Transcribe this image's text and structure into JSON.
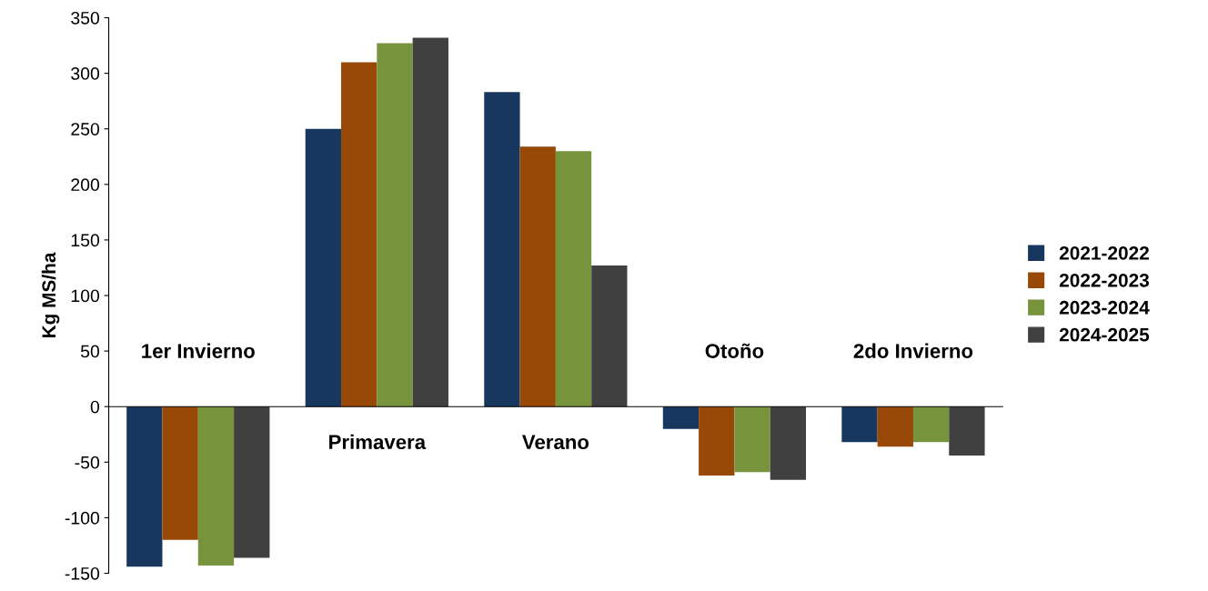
{
  "chart_data": {
    "type": "bar",
    "ylabel": "Kg MS/ha",
    "categories": [
      "1er Invierno",
      "Primavera",
      "Verano",
      "Otoño",
      "2do Invierno"
    ],
    "series": [
      {
        "name": "2021-2022",
        "color": "#17375e",
        "values": [
          -144,
          250,
          283,
          -20,
          -32
        ]
      },
      {
        "name": "2022-2023",
        "color": "#984807",
        "values": [
          -120,
          310,
          234,
          -62,
          -36
        ]
      },
      {
        "name": "2023-2024",
        "color": "#77933c",
        "values": [
          -143,
          327,
          230,
          -59,
          -32
        ]
      },
      {
        "name": "2024-2025",
        "color": "#404040",
        "values": [
          -136,
          332,
          127,
          -66,
          -44
        ]
      }
    ],
    "ylim": [
      -150,
      350
    ],
    "yticks": [
      -150,
      -100,
      -50,
      0,
      50,
      100,
      150,
      200,
      250,
      300,
      350
    ],
    "grid": false,
    "legend": "right"
  }
}
